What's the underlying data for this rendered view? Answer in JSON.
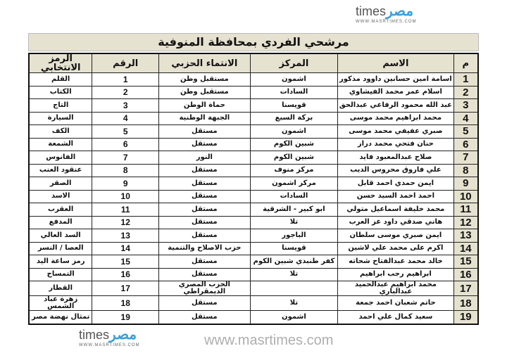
{
  "logo": {
    "text": "times",
    "arabic": "مصر",
    "url": "WWW.MASRTIMES.COM"
  },
  "watermark": "www.masrtimes.com",
  "title": "مرشحي الفردي بمحافظة المنوفية",
  "headers": [
    "م",
    "الاسم",
    "المركز",
    "الانتماء الحزبي",
    "الرقم",
    "الرمز الانتخابي"
  ],
  "rows": [
    {
      "n": "1",
      "name": "اسامة امين حسانين داوود مذكور",
      "center": "اشمون",
      "party": "مستقبل وطن",
      "num": "1",
      "symbol": "القلم"
    },
    {
      "n": "2",
      "name": "اسلام عمر محمد الفيشاوي",
      "center": "السادات",
      "party": "مستقبل وطن",
      "num": "2",
      "symbol": "الكتاب"
    },
    {
      "n": "3",
      "name": "عبد الله محمود الرفاعي عبدالحق",
      "center": "قويسنا",
      "party": "حماة الوطن",
      "num": "3",
      "symbol": "التاج"
    },
    {
      "n": "4",
      "name": "محمد ابراهيم محمد موسى",
      "center": "بركة السبع",
      "party": "الجبهة الوطنية",
      "num": "4",
      "symbol": "السيارة"
    },
    {
      "n": "5",
      "name": "صبري عفيفي محمد موسى",
      "center": "اشمون",
      "party": "مستقل",
      "num": "5",
      "symbol": "الكف"
    },
    {
      "n": "6",
      "name": "حنان فتحي محمد دراز",
      "center": "شبين الكوم",
      "party": "مستقل",
      "num": "6",
      "symbol": "الشمعة"
    },
    {
      "n": "7",
      "name": "صلاح عبدالمعبود فايد",
      "center": "شبين الكوم",
      "party": "النور",
      "num": "7",
      "symbol": "الفانوس"
    },
    {
      "n": "8",
      "name": "علي فاروق محروس الديب",
      "center": "مركز منوف",
      "party": "مستقل",
      "num": "8",
      "symbol": "عنقود العنب"
    },
    {
      "n": "9",
      "name": "ايمن حمدي احمد قابل",
      "center": "مركز اشمون",
      "party": "مستقل",
      "num": "9",
      "symbol": "الصقر"
    },
    {
      "n": "10",
      "name": "احمد احمد السيد حسن",
      "center": "السادات",
      "party": "مستقل",
      "num": "10",
      "symbol": "الاسد"
    },
    {
      "n": "11",
      "name": "محمد خليفة اسماعيل متولي",
      "center": "ابو كبير - الشرقية",
      "party": "مستقل",
      "num": "11",
      "symbol": "العقرب"
    },
    {
      "n": "12",
      "name": "هاني صدقي داود عز العرب",
      "center": "تلا",
      "party": "مستقل",
      "num": "12",
      "symbol": "المدفع"
    },
    {
      "n": "13",
      "name": "ايمن صبري موسى سلطان",
      "center": "الباجور",
      "party": "مستقل",
      "num": "13",
      "symbol": "السد العالي"
    },
    {
      "n": "14",
      "name": "اكرم على محمد علي لاشين",
      "center": "قويسنا",
      "party": "حزب الاصلاح والتنمية",
      "num": "14",
      "symbol": "العصا / النسر"
    },
    {
      "n": "15",
      "name": "خالد محمد عبدالفتاح شحاته",
      "center": "كفر طنبدي شبين الكوم",
      "party": "مستقل",
      "num": "15",
      "symbol": "رمز ساعة اليد"
    },
    {
      "n": "16",
      "name": "ابراهيم رجب ابراهيم",
      "center": "تلا",
      "party": "مستقل",
      "num": "16",
      "symbol": "التمساح"
    },
    {
      "n": "17",
      "name": "محمد ابراهيم عبدالحميد عبدالباري",
      "center": "",
      "party": "الحزب المصري الديمقراطي",
      "num": "17",
      "symbol": "القطار"
    },
    {
      "n": "18",
      "name": "حاتم شعبان احمد جمعة",
      "center": "تلا",
      "party": "مستقل",
      "num": "18",
      "symbol": "زهرة عباد الشمس"
    },
    {
      "n": "19",
      "name": "سعيد كمال علي احمد",
      "center": "اشمون",
      "party": "مستقل",
      "num": "19",
      "symbol": "تمثال نهضة مصر"
    }
  ]
}
